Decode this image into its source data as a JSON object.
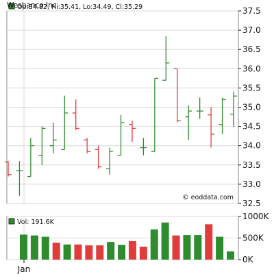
{
  "title": "Wesbanco Inc",
  "watermark": "© eoddata.com",
  "colors": {
    "up": "#2e8b2e",
    "down": "#e03c3c",
    "grid": "#d9d9d9",
    "frame": "#888888"
  },
  "chart_data": [
    {
      "type": "ohlc",
      "legend_text": "Op:34.82, Hi:35.41, Lo:34.49, Cl:35.29",
      "ylim": [
        32.5,
        37.5
      ],
      "yticks": [
        "37.5",
        "37.0",
        "36.5",
        "36.0",
        "35.5",
        "35.0",
        "34.5",
        "34.0",
        "33.5",
        "33.0",
        "32.5"
      ],
      "xtick_labels": [
        "Jan"
      ],
      "grid": true,
      "bars": [
        {
          "o": 33.58,
          "h": 33.6,
          "l": 33.2,
          "c": 33.25
        },
        {
          "o": 33.35,
          "h": 33.6,
          "l": 32.7,
          "c": 33.35
        },
        {
          "o": 33.2,
          "h": 34.2,
          "l": 33.2,
          "c": 34.0
        },
        {
          "o": 33.75,
          "h": 34.5,
          "l": 33.5,
          "c": 34.45
        },
        {
          "o": 34.0,
          "h": 34.6,
          "l": 33.8,
          "c": 34.15
        },
        {
          "o": 33.9,
          "h": 35.3,
          "l": 33.9,
          "c": 34.85
        },
        {
          "o": 34.85,
          "h": 35.2,
          "l": 34.4,
          "c": 34.45
        },
        {
          "o": 34.15,
          "h": 34.2,
          "l": 33.8,
          "c": 33.85
        },
        {
          "o": 33.9,
          "h": 34.0,
          "l": 33.4,
          "c": 33.45
        },
        {
          "o": 33.4,
          "h": 33.95,
          "l": 33.25,
          "c": 33.85
        },
        {
          "o": 33.75,
          "h": 34.8,
          "l": 33.75,
          "c": 34.6
        },
        {
          "o": 34.55,
          "h": 34.65,
          "l": 34.1,
          "c": 34.45
        },
        {
          "o": 33.95,
          "h": 34.2,
          "l": 33.75,
          "c": 33.95
        },
        {
          "o": 33.85,
          "h": 35.75,
          "l": 33.85,
          "c": 35.75
        },
        {
          "o": 35.7,
          "h": 36.85,
          "l": 35.7,
          "c": 36.15
        },
        {
          "o": 36.0,
          "h": 36.0,
          "l": 34.6,
          "c": 34.65
        },
        {
          "o": 34.75,
          "h": 35.05,
          "l": 34.15,
          "c": 34.9
        },
        {
          "o": 34.9,
          "h": 35.25,
          "l": 34.7,
          "c": 34.9
        },
        {
          "o": 34.8,
          "h": 35.0,
          "l": 33.95,
          "c": 34.3
        },
        {
          "o": 34.55,
          "h": 35.25,
          "l": 34.3,
          "c": 35.2
        },
        {
          "o": 34.82,
          "h": 35.41,
          "l": 34.49,
          "c": 35.29
        }
      ]
    },
    {
      "type": "bar",
      "legend_text": "Vol: 191.6K",
      "ylim": [
        0,
        1000000
      ],
      "yticks": [
        "1000K",
        "500K",
        "0K"
      ],
      "values": [
        580000,
        560000,
        530000,
        390000,
        350000,
        350000,
        330000,
        330000,
        410000,
        340000,
        430000,
        300000,
        700000,
        860000,
        560000,
        570000,
        570000,
        820000,
        530000,
        190000
      ],
      "directions": [
        "up",
        "up",
        "up",
        "down",
        "up",
        "down",
        "down",
        "down",
        "up",
        "up",
        "down",
        "down",
        "up",
        "up",
        "down",
        "up",
        "up",
        "down",
        "up",
        "up"
      ]
    }
  ]
}
